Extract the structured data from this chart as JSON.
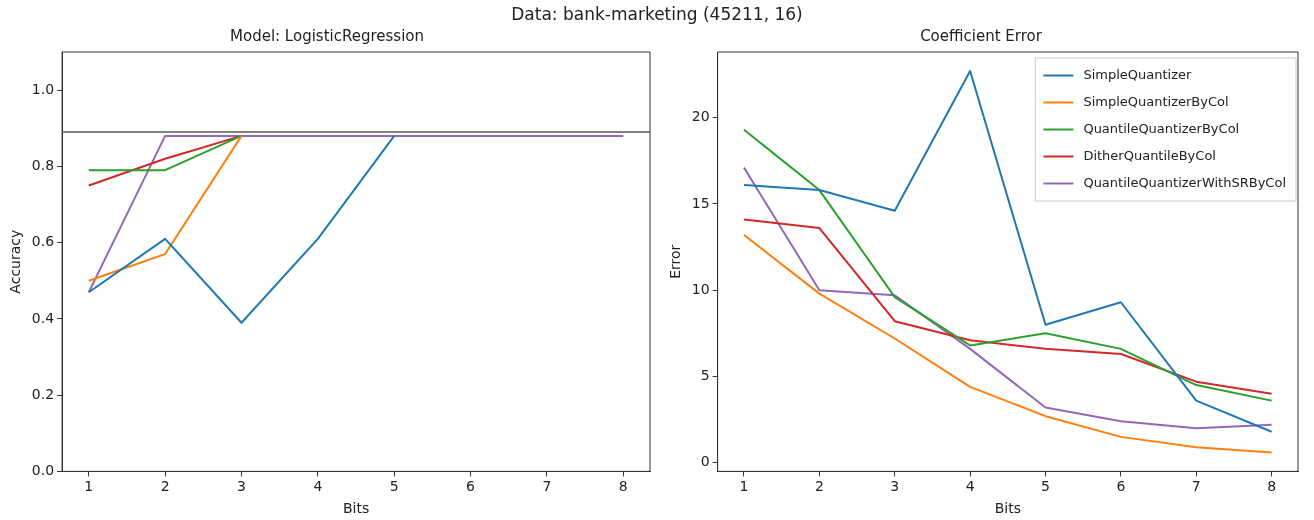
{
  "chart_data": [
    {
      "type": "line",
      "title": "Data: bank-marketing (45211, 16)",
      "subtitle": "Model: LogisticRegression",
      "xlabel": "Bits",
      "ylabel": "Accuracy",
      "x": [
        1,
        2,
        3,
        4,
        5,
        6,
        7,
        8
      ],
      "xlim": [
        0.65,
        8.35
      ],
      "xticks": [
        1,
        2,
        3,
        4,
        5,
        6,
        7,
        8
      ],
      "ylim": [
        0,
        1.1
      ],
      "yticks": [
        {
          "value": 0,
          "label": "0.0"
        },
        {
          "value": 0.2,
          "label": "0.2"
        },
        {
          "value": 0.4,
          "label": "0.4"
        },
        {
          "value": 0.6,
          "label": "0.6"
        },
        {
          "value": 0.8,
          "label": "0.8"
        },
        {
          "value": 1,
          "label": "1.0"
        }
      ],
      "grid": false,
      "legend": false,
      "marker": "none",
      "line_style": "solid",
      "series": [
        {
          "color": "#1f77b4",
          "values": [
            0.47,
            0.61,
            0.39,
            0.61,
            0.88,
            null,
            null,
            null
          ]
        },
        {
          "color": "#ff7f0e",
          "values": [
            0.5,
            0.57,
            0.88,
            null,
            null,
            null,
            null,
            null
          ]
        },
        {
          "color": "#2ca02c",
          "values": [
            0.79,
            0.79,
            0.88,
            null,
            null,
            null,
            null,
            null
          ]
        },
        {
          "color": "#d62728",
          "values": [
            0.75,
            0.82,
            0.88,
            null,
            null,
            null,
            null,
            null
          ]
        },
        {
          "color": "#9467bd",
          "values": [
            0.47,
            0.88,
            0.88,
            0.88,
            0.88,
            0.88,
            0.88,
            0.88
          ]
        }
      ],
      "ref_lines": [
        {
          "axis": "y",
          "value": 0.89,
          "color": "#808080"
        }
      ]
    },
    {
      "type": "line",
      "title": "Coefficient Error",
      "xlabel": "Bits",
      "ylabel": "Error",
      "x": [
        1,
        2,
        3,
        4,
        5,
        6,
        7,
        8
      ],
      "xlim": [
        0.65,
        8.35
      ],
      "xticks": [
        1,
        2,
        3,
        4,
        5,
        6,
        7,
        8
      ],
      "ylim": [
        -0.5,
        23.8
      ],
      "yticks": [
        0,
        5,
        10,
        15,
        20
      ],
      "grid": false,
      "legend": "top right",
      "marker": "none",
      "line_style": "solid",
      "series": [
        {
          "name": "SimpleQuantizer",
          "color": "#1f77b4",
          "values": [
            16.1,
            15.8,
            14.6,
            22.7,
            8.0,
            9.3,
            3.6,
            1.8
          ]
        },
        {
          "name": "SimpleQuantizerByCol",
          "color": "#ff7f0e",
          "values": [
            13.2,
            9.8,
            7.2,
            4.4,
            2.7,
            1.5,
            0.9,
            0.6
          ]
        },
        {
          "name": "QuantileQuantizerByCol",
          "color": "#2ca02c",
          "values": [
            19.3,
            15.8,
            9.6,
            6.8,
            7.5,
            6.6,
            4.5,
            3.6
          ]
        },
        {
          "name": "DitherQuantileByCol",
          "color": "#d62728",
          "values": [
            14.1,
            13.6,
            8.2,
            7.1,
            6.6,
            6.3,
            4.7,
            4.0
          ]
        },
        {
          "name": "QuantileQuantizerWithSRByCol",
          "color": "#9467bd",
          "values": [
            17.1,
            10.0,
            9.7,
            6.6,
            3.2,
            2.4,
            2.0,
            2.2
          ]
        }
      ]
    }
  ]
}
